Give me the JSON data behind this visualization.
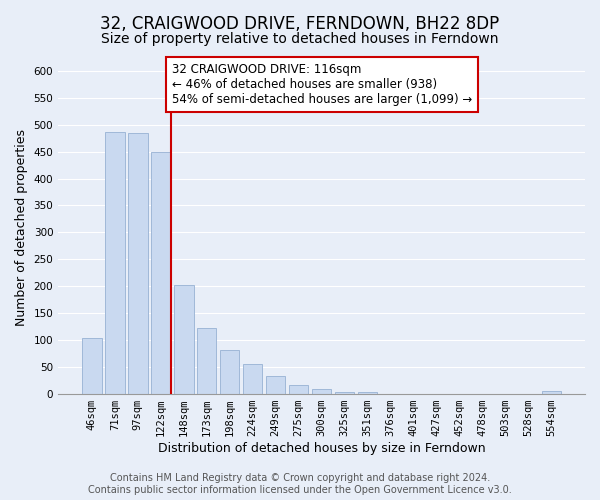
{
  "title": "32, CRAIGWOOD DRIVE, FERNDOWN, BH22 8DP",
  "subtitle": "Size of property relative to detached houses in Ferndown",
  "xlabel": "Distribution of detached houses by size in Ferndown",
  "ylabel": "Number of detached properties",
  "bar_labels": [
    "46sqm",
    "71sqm",
    "97sqm",
    "122sqm",
    "148sqm",
    "173sqm",
    "198sqm",
    "224sqm",
    "249sqm",
    "275sqm",
    "300sqm",
    "325sqm",
    "351sqm",
    "376sqm",
    "401sqm",
    "427sqm",
    "452sqm",
    "478sqm",
    "503sqm",
    "528sqm",
    "554sqm"
  ],
  "bar_values": [
    105,
    487,
    484,
    450,
    202,
    123,
    82,
    56,
    34,
    16,
    9,
    4,
    3,
    1,
    1,
    0,
    1,
    0,
    0,
    0,
    5
  ],
  "bar_color": "#c9d9f0",
  "bar_edge_color": "#a0b8d8",
  "vline_color": "#cc0000",
  "vline_x_index": 3,
  "annotation_line1": "32 CRAIGWOOD DRIVE: 116sqm",
  "annotation_line2": "← 46% of detached houses are smaller (938)",
  "annotation_line3": "54% of semi-detached houses are larger (1,099) →",
  "annotation_box_color": "#ffffff",
  "annotation_box_edge": "#cc0000",
  "ylim": [
    0,
    620
  ],
  "yticks": [
    0,
    50,
    100,
    150,
    200,
    250,
    300,
    350,
    400,
    450,
    500,
    550,
    600
  ],
  "footer_line1": "Contains HM Land Registry data © Crown copyright and database right 2024.",
  "footer_line2": "Contains public sector information licensed under the Open Government Licence v3.0.",
  "bg_color": "#e8eef8",
  "plot_bg_color": "#e8eef8",
  "title_fontsize": 12,
  "subtitle_fontsize": 10,
  "label_fontsize": 9,
  "tick_fontsize": 7.5,
  "footer_fontsize": 7,
  "annotation_fontsize": 8.5
}
